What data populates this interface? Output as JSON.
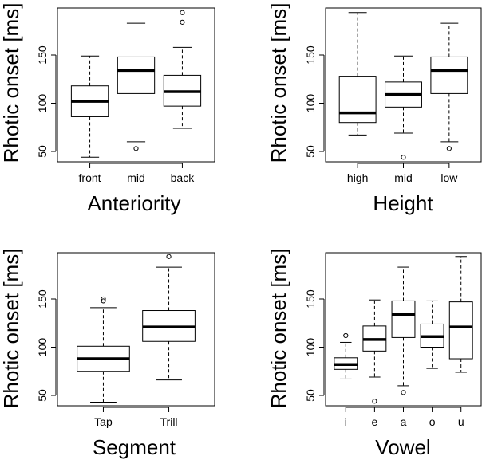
{
  "chart_data": [
    {
      "type": "box",
      "xlabel": "Anteriority",
      "ylabel": "Rhotic onset [ms]",
      "yticks": [
        50,
        100,
        150
      ],
      "ylim": [
        36,
        200
      ],
      "categories": [
        "front",
        "mid",
        "back"
      ],
      "boxes": [
        {
          "min": 44,
          "q1": 86,
          "median": 102,
          "q3": 118,
          "max": 149,
          "outliers": []
        },
        {
          "min": 60,
          "q1": 110,
          "median": 134,
          "q3": 148,
          "max": 183,
          "outliers": [
            53
          ]
        },
        {
          "min": 74,
          "q1": 97,
          "median": 112,
          "q3": 129,
          "max": 158,
          "outliers": [
            184,
            194
          ]
        }
      ]
    },
    {
      "type": "box",
      "xlabel": "Height",
      "ylabel": "Rhotic onset [ms]",
      "yticks": [
        50,
        100,
        150
      ],
      "ylim": [
        36,
        200
      ],
      "categories": [
        "high",
        "mid",
        "low"
      ],
      "boxes": [
        {
          "min": 67,
          "q1": 80,
          "median": 90,
          "q3": 128,
          "max": 194,
          "outliers": []
        },
        {
          "min": 69,
          "q1": 96,
          "median": 109,
          "q3": 122,
          "max": 149,
          "outliers": [
            44
          ]
        },
        {
          "min": 60,
          "q1": 110,
          "median": 134,
          "q3": 148,
          "max": 183,
          "outliers": [
            53
          ]
        }
      ]
    },
    {
      "type": "box",
      "xlabel": "Segment",
      "ylabel": "Rhotic onset [ms]",
      "yticks": [
        50,
        100,
        150
      ],
      "ylim": [
        36,
        200
      ],
      "categories": [
        "Tap",
        "Trill"
      ],
      "boxes": [
        {
          "min": 43,
          "q1": 75,
          "median": 88,
          "q3": 101,
          "max": 141,
          "outliers": [
            148,
            150
          ]
        },
        {
          "min": 66,
          "q1": 106,
          "median": 121,
          "q3": 138,
          "max": 183,
          "outliers": [
            194
          ]
        }
      ]
    },
    {
      "type": "box",
      "xlabel": "Vowel",
      "ylabel": "Rhotic onset [ms]",
      "yticks": [
        50,
        100,
        150
      ],
      "ylim": [
        36,
        200
      ],
      "categories": [
        "i",
        "e",
        "a",
        "o",
        "u"
      ],
      "boxes": [
        {
          "min": 67,
          "q1": 77,
          "median": 82,
          "q3": 89,
          "max": 105,
          "outliers": [
            112
          ]
        },
        {
          "min": 69,
          "q1": 96,
          "median": 108,
          "q3": 122,
          "max": 149,
          "outliers": [
            44
          ]
        },
        {
          "min": 60,
          "q1": 110,
          "median": 134,
          "q3": 148,
          "max": 183,
          "outliers": [
            53
          ]
        },
        {
          "min": 78,
          "q1": 100,
          "median": 111,
          "q3": 124,
          "max": 148,
          "outliers": []
        },
        {
          "min": 74,
          "q1": 88,
          "median": 121,
          "q3": 147,
          "max": 194,
          "outliers": []
        }
      ]
    }
  ]
}
